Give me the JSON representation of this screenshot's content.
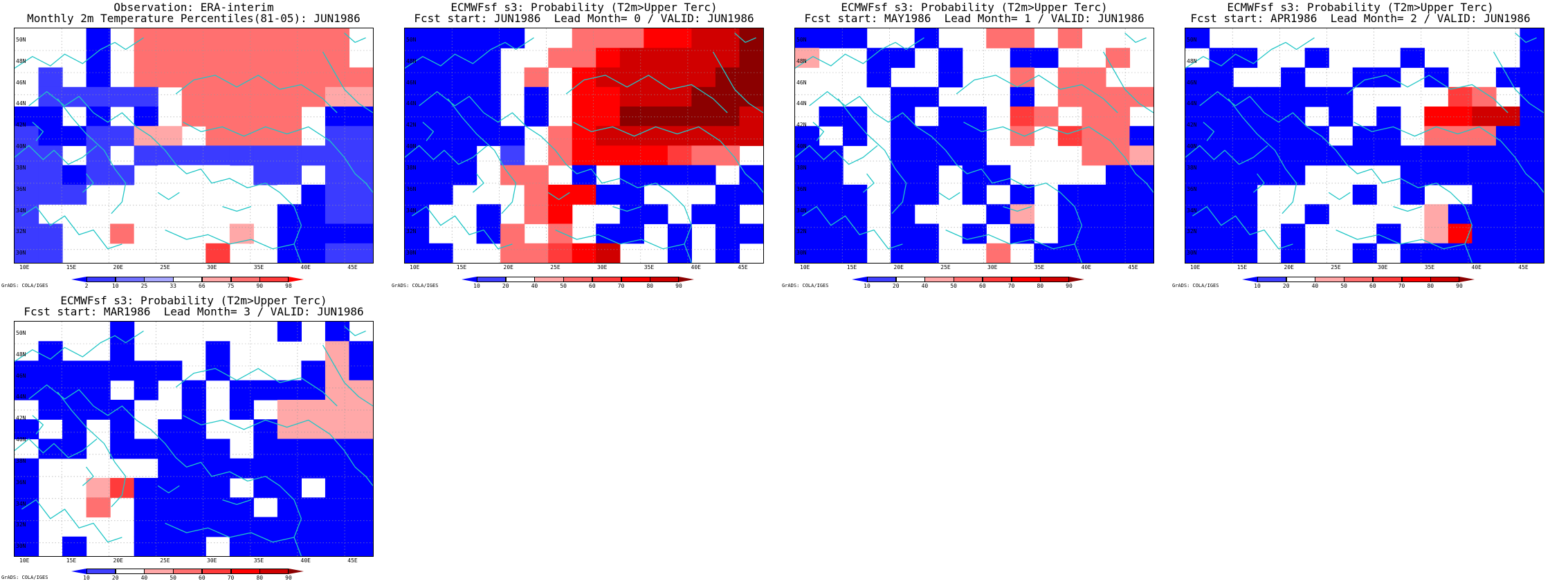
{
  "credit_text": "GrADS: COLA/IGES",
  "axis": {
    "lon_labels": [
      "10E",
      "15E",
      "20E",
      "25E",
      "30E",
      "35E",
      "40E",
      "45E"
    ],
    "lat_labels": [
      "50N",
      "48N",
      "46N",
      "44N",
      "42N",
      "40N",
      "38N",
      "36N",
      "34N",
      "32N",
      "30N"
    ]
  },
  "colorbars": {
    "observation": {
      "labels": [
        "2",
        "10",
        "25",
        "33",
        "66",
        "75",
        "90",
        "98"
      ],
      "colors": [
        "#0000ff",
        "#3b3bff",
        "#7070ff",
        "#a8a8ff",
        "#ffffff",
        "#ffa8a8",
        "#ff7070",
        "#ff3b3b",
        "#ff0000"
      ]
    },
    "probability": {
      "labels": [
        "10",
        "20",
        "40",
        "50",
        "60",
        "70",
        "80",
        "90"
      ],
      "colors": [
        "#0000ff",
        "#4040ff",
        "#ffffff",
        "#ffa8a8",
        "#ff7070",
        "#ff3b3b",
        "#ff0000",
        "#d00000",
        "#8b0000"
      ]
    }
  },
  "panels": [
    {
      "id": "obs",
      "title_line1": "Observation: ERA-interim",
      "title_line2": "Monthly 2m Temperature Percentiles(81-05): JUN1986",
      "colorbar": "observation",
      "grid": [
        "11111222222222",
        "11111222222222",
        "11111222222222",
        "11111222222222",
        "0000111222222000",
        "B00BB0000000000",
        "AAB0A11111111BB",
        "AABBAA333AA3A00",
        "AAA0A11111111AA",
        "ABAB1111BBB0BA",
        "AAA11777711BBBB",
        "AA1AA777777B0BB"
      ]
    },
    {
      "id": "lead0",
      "title_line1": "ECMWFsf s3: Probability (T2m>Upper Terc)",
      "title_line2": "Fcst start: JUN1986  Lead Month= 0 / VALID: JUN1986",
      "colorbar": "probability",
      "grid": []
    },
    {
      "id": "lead1",
      "title_line1": "ECMWFsf s3: Probability (T2m>Upper Terc)",
      "title_line2": "Fcst start: MAY1986  Lead Month= 1 / VALID: JUN1986",
      "colorbar": "probability",
      "grid": []
    },
    {
      "id": "lead2",
      "title_line1": "ECMWFsf s3: Probability (T2m>Upper Terc)",
      "title_line2": "Fcst start: APR1986  Lead Month= 2 / VALID: JUN1986",
      "colorbar": "probability",
      "grid": []
    },
    {
      "id": "lead3",
      "title_line1": "ECMWFsf s3: Probability (T2m>Upper Terc)",
      "title_line2": "Fcst start: MAR1986  Lead Month= 3 / VALID: JUN1986",
      "colorbar": "probability",
      "grid": []
    }
  ]
}
